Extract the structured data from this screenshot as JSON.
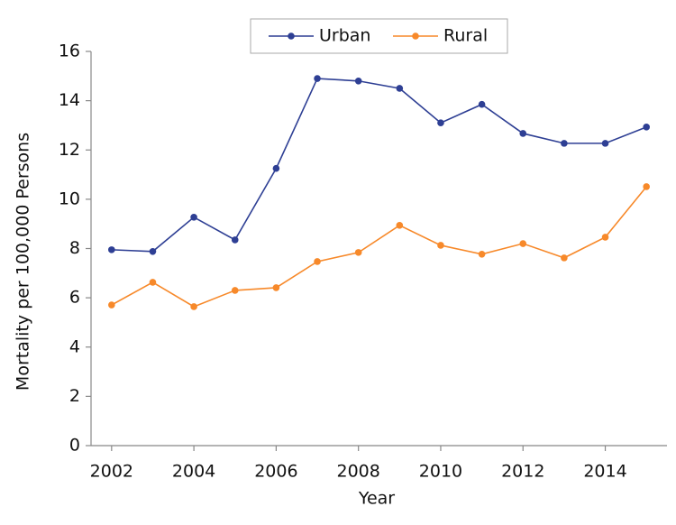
{
  "chart_data": {
    "type": "line",
    "x_label": "Year",
    "y_label": "Mortality per 100,000 Persons",
    "x": [
      2002,
      2003,
      2004,
      2005,
      2006,
      2007,
      2008,
      2009,
      2010,
      2011,
      2012,
      2013,
      2014,
      2015
    ],
    "series": [
      {
        "name": "Urban",
        "color": "#2e3f94",
        "values": [
          7.95,
          7.88,
          9.27,
          8.35,
          11.25,
          14.9,
          14.8,
          14.5,
          13.1,
          13.85,
          12.67,
          12.27,
          12.27,
          12.93
        ]
      },
      {
        "name": "Rural",
        "color": "#f7892a",
        "values": [
          5.71,
          6.63,
          5.64,
          6.3,
          6.41,
          7.47,
          7.84,
          8.94,
          8.13,
          7.77,
          8.2,
          7.62,
          8.46,
          10.51
        ]
      }
    ],
    "xlim": [
      2001.5,
      2015.5
    ],
    "xticks": [
      2002,
      2004,
      2006,
      2008,
      2010,
      2012,
      2014
    ],
    "ylim": [
      0,
      16
    ],
    "yticks": [
      0,
      2,
      4,
      6,
      8,
      10,
      12,
      14,
      16
    ],
    "grid": false,
    "legend": "upper center"
  }
}
